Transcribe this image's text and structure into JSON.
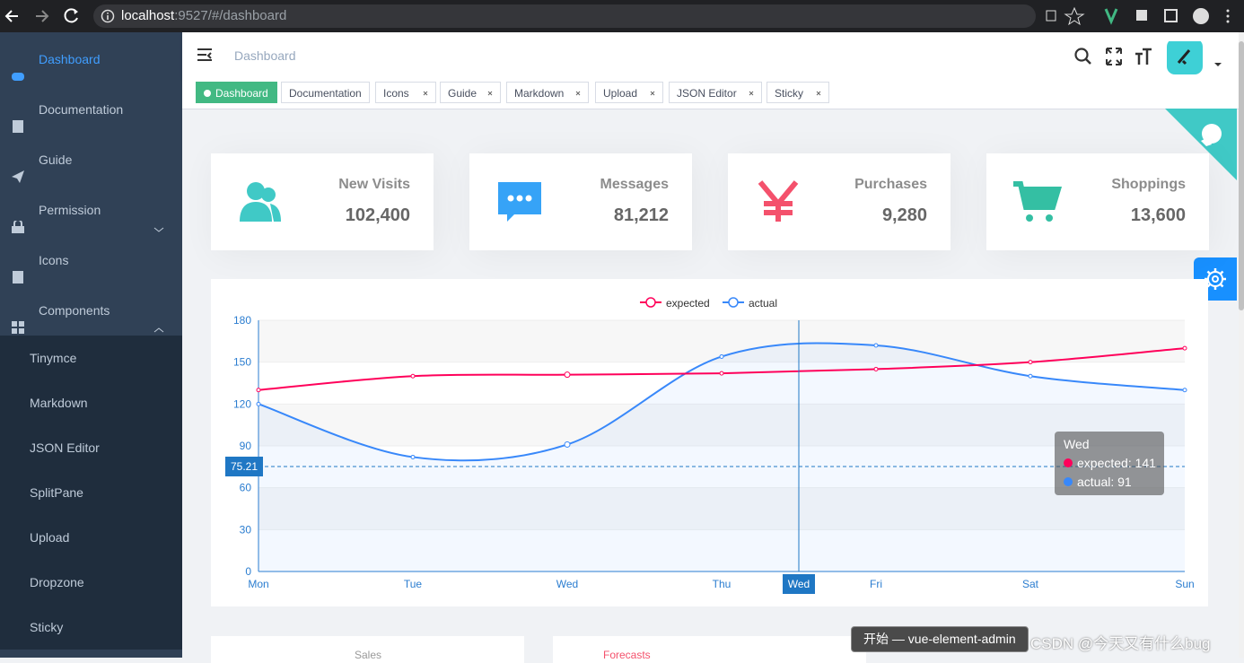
{
  "browser": {
    "url_host": "localhost",
    "url_rest": ":9527/#/dashboard"
  },
  "sidebar": {
    "items": [
      "Dashboard",
      "Documentation",
      "Guide",
      "Permission",
      "Icons",
      "Components"
    ],
    "submenu": [
      "Tinymce",
      "Markdown",
      "JSON Editor",
      "SplitPane",
      "Upload",
      "Dropzone",
      "Sticky"
    ]
  },
  "navbar": {
    "breadcrumb": "Dashboard"
  },
  "tags": [
    "Dashboard",
    "Documentation",
    "Icons",
    "Guide",
    "Markdown",
    "Upload",
    "JSON Editor",
    "Sticky"
  ],
  "panels": [
    {
      "label": "New Visits",
      "value": "102,400"
    },
    {
      "label": "Messages",
      "value": "81,212"
    },
    {
      "label": "Purchases",
      "value": "9,280"
    },
    {
      "label": "Shoppings",
      "value": "13,600"
    }
  ],
  "chart_data": {
    "type": "line",
    "categories": [
      "Mon",
      "Tue",
      "Wed",
      "Thu",
      "Fri",
      "Sat",
      "Sun"
    ],
    "series": [
      {
        "name": "expected",
        "color": "#FF005A",
        "values": [
          130,
          140,
          141,
          142,
          145,
          150,
          160
        ]
      },
      {
        "name": "actual",
        "color": "#3888fa",
        "values": [
          120,
          82,
          91,
          154,
          162,
          140,
          130
        ],
        "area": true
      }
    ],
    "ylim": [
      0,
      180
    ],
    "yticks": [
      0,
      30,
      60,
      90,
      120,
      150,
      180
    ],
    "grid": true,
    "axis_pointer": {
      "y": 75.21,
      "x_label": "Wed"
    },
    "tooltip": {
      "title": "Wed",
      "lines": [
        "expected: 141",
        "actual: 91"
      ]
    }
  },
  "bottom": {
    "panels": [
      "Sales",
      "Forecasts"
    ]
  },
  "popup": "开始 — vue-element-admin",
  "watermark": "CSDN @今天又有什么bug"
}
